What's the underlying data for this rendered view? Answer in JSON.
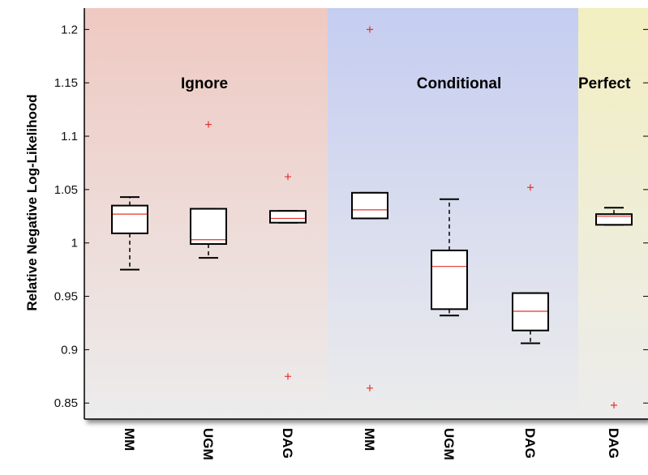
{
  "chart_data": {
    "type": "boxplot",
    "ylabel": "Relative Negative Log-Likelihood",
    "ylim": [
      0.835,
      1.22
    ],
    "yticks": [
      "0.85",
      "0.9",
      "0.95",
      "1",
      "1.05",
      "1.1",
      "1.15",
      "1.2"
    ],
    "yticks_values": [
      0.85,
      0.9,
      0.95,
      1.0,
      1.05,
      1.1,
      1.15,
      1.2
    ],
    "grid": false,
    "groups": [
      {
        "label": "Ignore",
        "color": "#efc9c2"
      },
      {
        "label": "Conditional",
        "color": "#c5cdf1"
      },
      {
        "label": "Perfect",
        "color": "#f2efc0"
      }
    ],
    "categories": [
      "MM",
      "UGM",
      "DAG",
      "MM",
      "UGM",
      "DAG",
      "DAG"
    ],
    "boxes": [
      {
        "group": 0,
        "label": "MM",
        "whisker_low": 0.975,
        "q1": 1.009,
        "median": 1.027,
        "q3": 1.035,
        "whisker_high": 1.043,
        "outliers": []
      },
      {
        "group": 0,
        "label": "UGM",
        "whisker_low": 0.986,
        "q1": 0.999,
        "median": 1.003,
        "q3": 1.032,
        "whisker_high": 1.032,
        "outliers": [
          1.111
        ]
      },
      {
        "group": 0,
        "label": "DAG",
        "whisker_low": 1.019,
        "q1": 1.019,
        "median": 1.023,
        "q3": 1.03,
        "whisker_high": 1.03,
        "outliers": [
          1.062,
          0.875
        ]
      },
      {
        "group": 1,
        "label": "MM",
        "whisker_low": 1.023,
        "q1": 1.023,
        "median": 1.031,
        "q3": 1.047,
        "whisker_high": 1.047,
        "outliers": [
          1.2,
          0.864
        ]
      },
      {
        "group": 1,
        "label": "UGM",
        "whisker_low": 0.932,
        "q1": 0.938,
        "median": 0.978,
        "q3": 0.993,
        "whisker_high": 1.041,
        "outliers": []
      },
      {
        "group": 1,
        "label": "DAG",
        "whisker_low": 0.906,
        "q1": 0.918,
        "median": 0.936,
        "q3": 0.953,
        "whisker_high": 0.953,
        "outliers": [
          1.052
        ]
      },
      {
        "group": 2,
        "label": "DAG",
        "whisker_low": 1.017,
        "q1": 1.017,
        "median": 1.025,
        "q3": 1.027,
        "whisker_high": 1.033,
        "outliers": [
          0.848
        ]
      }
    ],
    "colors": {
      "box": "#000000",
      "median": "#e8302a",
      "outlier": "#e8302a",
      "axis": "#000000"
    }
  }
}
